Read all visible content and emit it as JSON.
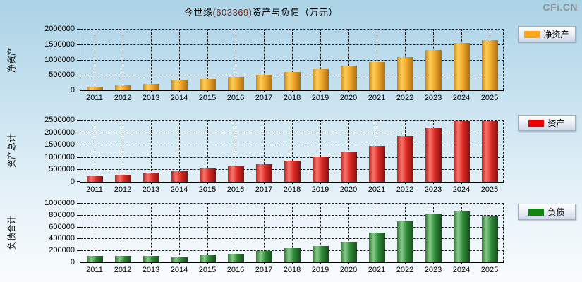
{
  "header": {
    "title_name": "今世缘",
    "title_code": "(603369)",
    "title_rest": "资产与负债（万元）",
    "watermark": "CFi.CN"
  },
  "colors": {
    "background_top": "#ABD3E6",
    "background_bottom": "#F9FCFE",
    "grid": "#1A1A1A",
    "axis": "#000000",
    "title_code": "#7E2817",
    "watermark_gray": "#8A949A",
    "net_assets_orange": "#FFA519",
    "assets_red": "#EE0000",
    "liabilities_green": "#0F870F"
  },
  "chart_data": [
    {
      "type": "bar",
      "title": "净资产",
      "ylabel": "净资产",
      "xlabel": "",
      "legend": "净资产",
      "legend_position": "right",
      "legend_color": "#FFA519",
      "bar_gradient": [
        "#C8871F",
        "#FFCE58",
        "#F0A62A",
        "#A96F12"
      ],
      "grid": true,
      "categories": [
        "2011",
        "2012",
        "2013",
        "2014",
        "2015",
        "2016",
        "2017",
        "2018",
        "2019",
        "2020",
        "2021",
        "2022",
        "2023",
        "2024",
        "2025"
      ],
      "values": [
        115000,
        160000,
        210000,
        325000,
        370000,
        440000,
        515000,
        590000,
        690000,
        800000,
        925000,
        1085000,
        1310000,
        1550000,
        1640000
      ],
      "ylim": [
        0,
        2000000
      ],
      "yticks": [
        0,
        500000,
        1000000,
        1500000,
        2000000
      ]
    },
    {
      "type": "bar",
      "title": "资产",
      "ylabel": "资产总计",
      "xlabel": "",
      "legend": "资产",
      "legend_position": "right",
      "legend_color": "#EE0000",
      "bar_gradient": [
        "#B22620",
        "#F9766B",
        "#DD2A24",
        "#851210"
      ],
      "grid": true,
      "categories": [
        "2011",
        "2012",
        "2013",
        "2014",
        "2015",
        "2016",
        "2017",
        "2018",
        "2019",
        "2020",
        "2021",
        "2022",
        "2023",
        "2024",
        "2025"
      ],
      "values": [
        240000,
        280000,
        335000,
        440000,
        535000,
        625000,
        720000,
        845000,
        1010000,
        1200000,
        1460000,
        1835000,
        2175000,
        2440000,
        2470000
      ],
      "ylim": [
        0,
        2500000
      ],
      "yticks": [
        0,
        500000,
        1000000,
        1500000,
        2000000,
        2500000
      ]
    },
    {
      "type": "bar",
      "title": "负债",
      "ylabel": "负债合计",
      "xlabel": "",
      "legend": "负债",
      "legend_position": "right",
      "legend_color": "#0F870F",
      "bar_gradient": [
        "#2E7A32",
        "#8CC98F",
        "#2E8B36",
        "#174D1C"
      ],
      "grid": true,
      "categories": [
        "2011",
        "2012",
        "2013",
        "2014",
        "2015",
        "2016",
        "2017",
        "2018",
        "2019",
        "2020",
        "2021",
        "2022",
        "2023",
        "2024",
        "2025"
      ],
      "values": [
        102000,
        113000,
        102000,
        87000,
        133000,
        146000,
        196000,
        239000,
        271000,
        341000,
        498000,
        694000,
        816000,
        867000,
        776000
      ],
      "ylim": [
        0,
        1000000
      ],
      "yticks": [
        0,
        200000,
        400000,
        600000,
        800000,
        1000000
      ]
    }
  ]
}
